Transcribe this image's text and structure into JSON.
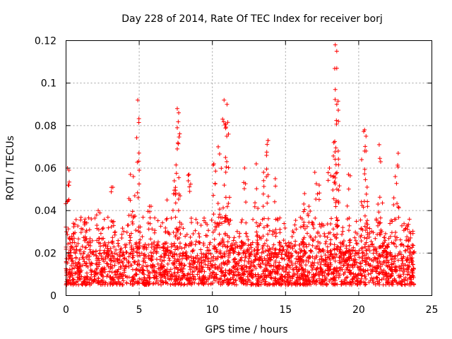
{
  "chart_data": {
    "type": "scatter",
    "title": "Day 228 of 2014, Rate Of TEC Index for receiver borj",
    "xlabel": "GPS time / hours",
    "ylabel": "ROTI / TECUs",
    "xlim": [
      0,
      25
    ],
    "ylim": [
      0,
      0.12
    ],
    "x_ticks": [
      0,
      5,
      10,
      15,
      20,
      25
    ],
    "x_tick_labels": [
      "0",
      "5",
      "10",
      "15",
      "20",
      "25"
    ],
    "y_ticks": [
      0,
      0.02,
      0.04,
      0.06,
      0.08,
      0.1,
      0.12
    ],
    "y_tick_labels": [
      "0",
      "0.02",
      "0.04",
      "0.06",
      "0.08",
      "0.1",
      "0.12"
    ],
    "grid": true,
    "marker": "+",
    "color": "#ff0000",
    "series": [
      {
        "name": "ROTI",
        "x_range": [
          0,
          23.8
        ],
        "typical_range": [
          0.005,
          0.025
        ],
        "spikes": [
          {
            "x": 0.1,
            "y": 0.06
          },
          {
            "x": 0.2,
            "y": 0.059
          },
          {
            "x": 0.5,
            "y": 0.034
          },
          {
            "x": 1.3,
            "y": 0.036
          },
          {
            "x": 2.2,
            "y": 0.04
          },
          {
            "x": 3.2,
            "y": 0.051
          },
          {
            "x": 4.4,
            "y": 0.057
          },
          {
            "x": 4.6,
            "y": 0.056
          },
          {
            "x": 4.9,
            "y": 0.092
          },
          {
            "x": 5.0,
            "y": 0.059
          },
          {
            "x": 5.7,
            "y": 0.042
          },
          {
            "x": 6.9,
            "y": 0.045
          },
          {
            "x": 7.4,
            "y": 0.054
          },
          {
            "x": 7.6,
            "y": 0.088
          },
          {
            "x": 7.7,
            "y": 0.086
          },
          {
            "x": 7.6,
            "y": 0.079
          },
          {
            "x": 7.6,
            "y": 0.069
          },
          {
            "x": 8.4,
            "y": 0.057
          },
          {
            "x": 10.1,
            "y": 0.062
          },
          {
            "x": 10.4,
            "y": 0.07
          },
          {
            "x": 10.7,
            "y": 0.083
          },
          {
            "x": 10.8,
            "y": 0.092
          },
          {
            "x": 11.0,
            "y": 0.09
          },
          {
            "x": 11.1,
            "y": 0.076
          },
          {
            "x": 10.9,
            "y": 0.065
          },
          {
            "x": 12.2,
            "y": 0.06
          },
          {
            "x": 13.0,
            "y": 0.062
          },
          {
            "x": 13.5,
            "y": 0.058
          },
          {
            "x": 13.8,
            "y": 0.073
          },
          {
            "x": 13.7,
            "y": 0.066
          },
          {
            "x": 14.3,
            "y": 0.055
          },
          {
            "x": 16.3,
            "y": 0.048
          },
          {
            "x": 16.6,
            "y": 0.042
          },
          {
            "x": 17.0,
            "y": 0.058
          },
          {
            "x": 17.3,
            "y": 0.052
          },
          {
            "x": 18.0,
            "y": 0.06
          },
          {
            "x": 18.3,
            "y": 0.072
          },
          {
            "x": 18.4,
            "y": 0.118
          },
          {
            "x": 18.5,
            "y": 0.115
          },
          {
            "x": 18.5,
            "y": 0.107
          },
          {
            "x": 18.4,
            "y": 0.097
          },
          {
            "x": 18.5,
            "y": 0.09
          },
          {
            "x": 18.6,
            "y": 0.068
          },
          {
            "x": 19.3,
            "y": 0.057
          },
          {
            "x": 20.2,
            "y": 0.064
          },
          {
            "x": 20.4,
            "y": 0.078
          },
          {
            "x": 20.5,
            "y": 0.075
          },
          {
            "x": 20.5,
            "y": 0.068
          },
          {
            "x": 21.4,
            "y": 0.071
          },
          {
            "x": 21.5,
            "y": 0.063
          },
          {
            "x": 22.5,
            "y": 0.056
          },
          {
            "x": 22.7,
            "y": 0.067
          },
          {
            "x": 23.3,
            "y": 0.033
          }
        ]
      }
    ]
  }
}
